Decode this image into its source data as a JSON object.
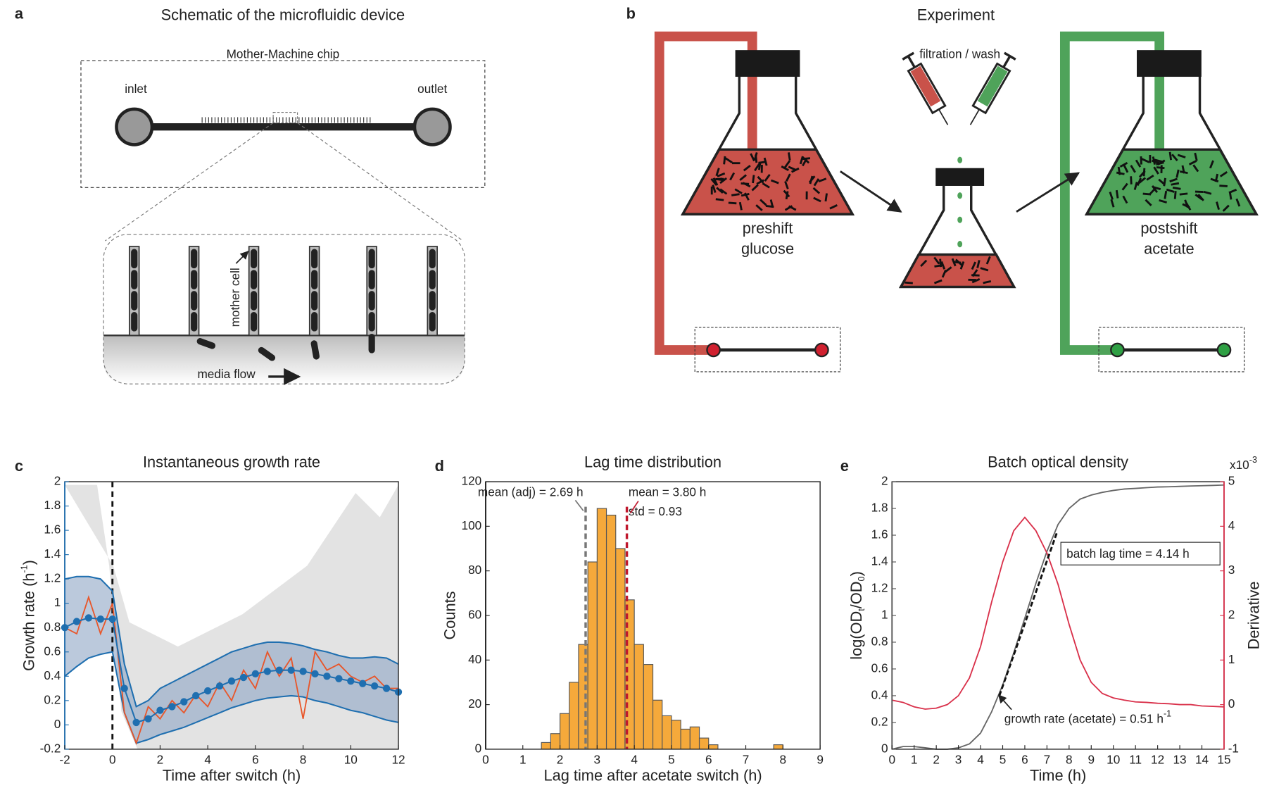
{
  "panel_labels": [
    "a",
    "b",
    "c",
    "d",
    "e"
  ],
  "panel_a": {
    "title": "Schematic of the microfluidic device",
    "chip_label": "Mother-Machine chip",
    "inlet": "inlet",
    "outlet": "outlet",
    "cell_label": "mother cell",
    "flow_label": "media flow"
  },
  "panel_b": {
    "title": "Experiment",
    "wash_label": "filtration / wash",
    "preshift": [
      "preshift",
      "glucose"
    ],
    "postshift": [
      "postshift",
      "acetate"
    ]
  },
  "chart_data": [
    {
      "type": "line",
      "title": "Instantaneous growth rate",
      "xlabel": "Time after switch (h)",
      "ylabel": [
        "Growth rate (h",
        "-1",
        ")"
      ],
      "x": [
        -2,
        -1.5,
        -1,
        -0.5,
        0,
        0.5,
        1,
        1.5,
        2,
        2.5,
        3,
        3.5,
        4,
        4.5,
        5,
        5.5,
        6,
        6.5,
        7,
        7.5,
        8,
        8.5,
        9,
        9.5,
        10,
        10.5,
        11,
        11.5,
        12
      ],
      "series": [
        {
          "color": "#1f6fb0",
          "values": [
            0.8,
            0.85,
            0.88,
            0.87,
            0.87,
            0.3,
            0.02,
            0.05,
            0.12,
            0.15,
            0.19,
            0.24,
            0.28,
            0.32,
            0.36,
            0.39,
            0.42,
            0.44,
            0.45,
            0.45,
            0.44,
            0.42,
            0.4,
            0.38,
            0.36,
            0.34,
            0.32,
            0.3,
            0.27
          ]
        },
        {
          "color": "#1f6fb0",
          "values": [
            1.2,
            1.22,
            1.22,
            1.2,
            1.1,
            0.5,
            0.15,
            0.2,
            0.3,
            0.35,
            0.4,
            0.45,
            0.5,
            0.55,
            0.6,
            0.63,
            0.66,
            0.68,
            0.68,
            0.67,
            0.65,
            0.62,
            0.6,
            0.57,
            0.55,
            0.55,
            0.56,
            0.55,
            0.5
          ]
        },
        {
          "color": "#1f6fb0",
          "values": [
            0.4,
            0.48,
            0.55,
            0.58,
            0.6,
            0.1,
            -0.15,
            -0.12,
            -0.08,
            -0.05,
            -0.02,
            0.02,
            0.06,
            0.1,
            0.14,
            0.17,
            0.2,
            0.22,
            0.23,
            0.24,
            0.23,
            0.2,
            0.18,
            0.15,
            0.12,
            0.1,
            0.07,
            0.04,
            0.02
          ]
        },
        {
          "color": "#e8562a",
          "values": [
            0.8,
            0.75,
            1.05,
            0.75,
            1.0,
            0.1,
            -0.15,
            0.15,
            0.05,
            0.2,
            0.1,
            0.25,
            0.15,
            0.35,
            0.2,
            0.45,
            0.3,
            0.6,
            0.4,
            0.55,
            0.05,
            0.6,
            0.45,
            0.5,
            0.4,
            0.35,
            0.4,
            0.3,
            0.3
          ]
        }
      ],
      "vline": 0,
      "xlim": [
        -2,
        12
      ],
      "xticks": [
        -2,
        0,
        2,
        4,
        6,
        8,
        10,
        12
      ],
      "ylim": [
        -0.2,
        2
      ],
      "yticks": [
        -0.2,
        0,
        0.2,
        0.4,
        0.6,
        0.8,
        1,
        1.2,
        1.4,
        1.6,
        1.8,
        2
      ]
    },
    {
      "type": "histogram",
      "title": "Lag time distribution",
      "xlabel": "Lag time after acetate switch (h)",
      "ylabel": "Counts",
      "bins": [
        1.5,
        1.75,
        2,
        2.25,
        2.5,
        2.75,
        3,
        3.25,
        3.5,
        3.75,
        4,
        4.25,
        4.5,
        4.75,
        5,
        5.25,
        5.5,
        5.75,
        6,
        6.25,
        6.5,
        6.75,
        7,
        7.25,
        7.5,
        7.75,
        8
      ],
      "counts": [
        3,
        7,
        16,
        30,
        47,
        84,
        108,
        105,
        90,
        67,
        47,
        38,
        22,
        15,
        13,
        9,
        10,
        5,
        2,
        0,
        0,
        0,
        0,
        0,
        0,
        2
      ],
      "color": "#f5a93b",
      "vlines": [
        {
          "value": 2.69,
          "label": "mean (adj) = 2.69 h",
          "color": "#777777"
        },
        {
          "value": 3.8,
          "label": "mean = 3.80 h",
          "color": "#c0182d"
        }
      ],
      "std_label": "std = 0.93",
      "xlim": [
        0,
        9
      ],
      "xticks": [
        0,
        1,
        2,
        3,
        4,
        5,
        6,
        7,
        8,
        9
      ],
      "ylim": [
        0,
        120
      ],
      "yticks": [
        0,
        20,
        40,
        60,
        80,
        100,
        120
      ]
    },
    {
      "type": "line",
      "title": "Batch optical density",
      "xlabel": "Time (h)",
      "ylabel": [
        "log(OD",
        "t",
        "/OD",
        "0",
        ")"
      ],
      "y2label": "Derivative",
      "y2_exponent": [
        "x10",
        "-3"
      ],
      "x": [
        0,
        0.5,
        1,
        1.5,
        2,
        2.5,
        3,
        3.5,
        4,
        4.5,
        5,
        5.5,
        6,
        6.5,
        7,
        7.5,
        8,
        8.5,
        9,
        9.5,
        10,
        10.5,
        11,
        11.5,
        12,
        12.5,
        13,
        13.5,
        14,
        14.5,
        15
      ],
      "series": [
        {
          "color": "#666666",
          "values": [
            0,
            0.02,
            0.02,
            0.01,
            0,
            0,
            0.01,
            0.04,
            0.12,
            0.28,
            0.48,
            0.72,
            0.98,
            1.24,
            1.48,
            1.68,
            1.8,
            1.87,
            1.9,
            1.92,
            1.935,
            1.945,
            1.95,
            1.955,
            1.96,
            1.962,
            1.965,
            1.968,
            1.97,
            1.972,
            1.975
          ]
        },
        {
          "color": "#d9304a",
          "axis": "y2",
          "values": [
            0.1,
            0.05,
            -0.05,
            -0.1,
            -0.08,
            0,
            0.2,
            0.6,
            1.3,
            2.3,
            3.2,
            3.9,
            4.2,
            3.9,
            3.4,
            2.7,
            1.8,
            1,
            0.5,
            0.25,
            0.15,
            0.1,
            0.06,
            0.05,
            0.03,
            0.02,
            0,
            0,
            -0.03,
            -0.04,
            -0.05
          ]
        }
      ],
      "fit": {
        "x": [
          4.85,
          7.45
        ],
        "values": [
          0.4,
          1.62
        ]
      },
      "lag_label": "batch lag time = 4.14 h",
      "rate_label": [
        "growth rate (acetate) = 0.51 h",
        "-1"
      ],
      "xlim": [
        0,
        15
      ],
      "xticks": [
        0,
        1,
        2,
        3,
        4,
        5,
        6,
        7,
        8,
        9,
        10,
        11,
        12,
        13,
        14,
        15
      ],
      "ylim": [
        0,
        2
      ],
      "yticks": [
        0,
        0.2,
        0.4,
        0.6,
        0.8,
        1,
        1.2,
        1.4,
        1.6,
        1.8,
        2
      ],
      "y2lim": [
        -1,
        5
      ],
      "y2ticks": [
        -1,
        0,
        1,
        2,
        3,
        4,
        5
      ]
    }
  ]
}
